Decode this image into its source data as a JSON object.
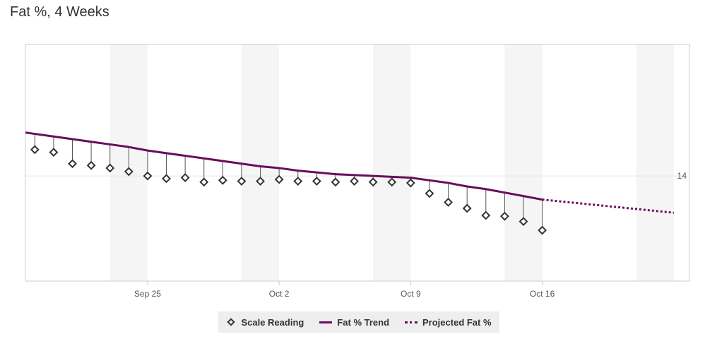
{
  "title": "Fat %, 4 Weeks",
  "colors": {
    "trend": "#6a0d5c",
    "marker": "#333333",
    "weekend_band": "#f5f5f5",
    "legend_bg": "#eeeeee"
  },
  "legend": {
    "scale_label": "Scale Reading",
    "trend_label": "Fat % Trend",
    "projected_label": "Projected Fat %"
  },
  "chart_data": {
    "type": "line",
    "title": "Fat %, 4 Weeks",
    "xlabel": "",
    "ylabel": "",
    "x_ticks": [
      "Sep 25",
      "Oct 2",
      "Oct 9",
      "Oct 16"
    ],
    "y_ticks": [
      14
    ],
    "y_axis_position": "right",
    "ylim": [
      12.8,
      15.5
    ],
    "x_start": "2017-09-19",
    "weekend_bands": [
      [
        "2017-09-23",
        "2017-09-25"
      ],
      [
        "2017-09-30",
        "2017-10-02"
      ],
      [
        "2017-10-07",
        "2017-10-09"
      ],
      [
        "2017-10-14",
        "2017-10-16"
      ],
      [
        "2017-10-21",
        "2017-10-23"
      ]
    ],
    "xlim": [
      "2017-09-18T12:00:00",
      "2017-10-23T20:00:00"
    ],
    "grid": "horizontal at y tick",
    "legend_position": "bottom-center",
    "series": [
      {
        "name": "Scale Reading",
        "style": "diamond markers",
        "x": [
          "2017-09-19",
          "2017-09-20",
          "2017-09-21",
          "2017-09-22",
          "2017-09-23",
          "2017-09-24",
          "2017-09-25",
          "2017-09-26",
          "2017-09-27",
          "2017-09-28",
          "2017-09-29",
          "2017-09-30",
          "2017-10-01",
          "2017-10-02",
          "2017-10-03",
          "2017-10-04",
          "2017-10-05",
          "2017-10-06",
          "2017-10-07",
          "2017-10-08",
          "2017-10-09",
          "2017-10-10",
          "2017-10-11",
          "2017-10-12",
          "2017-10-13",
          "2017-10-14",
          "2017-10-15",
          "2017-10-16"
        ],
        "values": [
          14.3,
          14.27,
          14.14,
          14.12,
          14.09,
          14.05,
          14.0,
          13.97,
          13.98,
          13.93,
          13.95,
          13.94,
          13.94,
          13.96,
          13.94,
          13.94,
          13.93,
          13.94,
          13.93,
          13.93,
          13.92,
          13.8,
          13.7,
          13.63,
          13.55,
          13.54,
          13.48,
          13.38
        ]
      },
      {
        "name": "Fat % Trend",
        "style": "solid line",
        "x": [
          "2017-09-19",
          "2017-09-20",
          "2017-09-21",
          "2017-09-22",
          "2017-09-23",
          "2017-09-24",
          "2017-09-25",
          "2017-09-26",
          "2017-09-27",
          "2017-09-28",
          "2017-09-29",
          "2017-09-30",
          "2017-10-01",
          "2017-10-02",
          "2017-10-03",
          "2017-10-04",
          "2017-10-05",
          "2017-10-06",
          "2017-10-07",
          "2017-10-08",
          "2017-10-09",
          "2017-10-10",
          "2017-10-11",
          "2017-10-12",
          "2017-10-13",
          "2017-10-14",
          "2017-10-15",
          "2017-10-16"
        ],
        "values": [
          14.48,
          14.45,
          14.42,
          14.39,
          14.36,
          14.33,
          14.29,
          14.26,
          14.23,
          14.2,
          14.17,
          14.14,
          14.11,
          14.09,
          14.06,
          14.04,
          14.02,
          14.01,
          14.0,
          13.99,
          13.98,
          13.95,
          13.92,
          13.88,
          13.85,
          13.81,
          13.77,
          13.73
        ]
      },
      {
        "name": "Projected Fat %",
        "style": "dotted line",
        "x": [
          "2017-10-16",
          "2017-10-23"
        ],
        "values": [
          13.73,
          13.58
        ]
      }
    ]
  }
}
